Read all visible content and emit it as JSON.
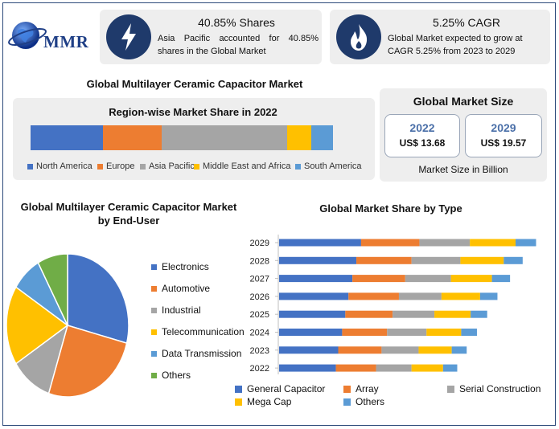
{
  "logo": {
    "text": "MMR"
  },
  "card1": {
    "title": "40.85% Shares",
    "line1": "Asia Pacific accounted for 40.85%",
    "line2": "shares in the Global Market",
    "icon": "lightning-icon"
  },
  "card2": {
    "title": "5.25% CAGR",
    "line1": "Global Market expected to grow at",
    "line2": "CAGR 5.25% from 2023 to 2029",
    "icon": "flame-icon"
  },
  "main_title": "Global Multilayer Ceramic Capacitor Market",
  "market_size": {
    "title": "Global Market Size",
    "boxes": [
      {
        "year": "2022",
        "value": "US$ 13.68"
      },
      {
        "year": "2029",
        "value": "US$ 19.57"
      }
    ],
    "caption": "Market Size in Billion"
  },
  "colors": {
    "blue": "#4472c4",
    "orange": "#ed7d31",
    "gray": "#a5a5a5",
    "yellow": "#ffc000",
    "lightblue": "#5b9bd5",
    "green": "#70ad47"
  },
  "chart_data": [
    {
      "type": "bar",
      "title": "Region-wise Market Share in 2022",
      "orientation": "horizontal-stacked",
      "series": [
        {
          "name": "North America",
          "values": [
            22
          ],
          "color": "#4472c4"
        },
        {
          "name": "Europe",
          "values": [
            18
          ],
          "color": "#ed7d31"
        },
        {
          "name": "Asia Pacific",
          "values": [
            38
          ],
          "color": "#a5a5a5"
        },
        {
          "name": "Middle East and Africa",
          "values": [
            7.5
          ],
          "color": "#ffc000"
        },
        {
          "name": "South America",
          "values": [
            6.5
          ],
          "color": "#5b9bd5"
        }
      ],
      "legend": "bottom"
    },
    {
      "type": "pie",
      "title": "Global Multilayer Ceramic Capacitor Market by End-User",
      "slices": [
        {
          "name": "Electronics",
          "value": 29,
          "color": "#4472c4"
        },
        {
          "name": "Automotive",
          "value": 26,
          "color": "#ed7d31"
        },
        {
          "name": "Industrial",
          "value": 11,
          "color": "#a5a5a5"
        },
        {
          "name": "Telecommunication",
          "value": 18,
          "color": "#ffc000"
        },
        {
          "name": "Data Transmission",
          "value": 8,
          "color": "#5b9bd5"
        },
        {
          "name": "Others",
          "value": 8,
          "color": "#70ad47"
        }
      ],
      "legend": "right"
    },
    {
      "type": "bar",
      "title": "Global Market Share by Type",
      "orientation": "horizontal-stacked",
      "categories": [
        "2029",
        "2028",
        "2027",
        "2026",
        "2025",
        "2024",
        "2023",
        "2022"
      ],
      "series": [
        {
          "name": "General Capacitor",
          "values": [
            104,
            98,
            93,
            88,
            84,
            80,
            75,
            72
          ],
          "color": "#4472c4"
        },
        {
          "name": "Array",
          "values": [
            74,
            70,
            67,
            64,
            60,
            57,
            55,
            51
          ],
          "color": "#ed7d31"
        },
        {
          "name": "Serial Construction",
          "values": [
            64,
            62,
            58,
            54,
            53,
            50,
            47,
            45
          ],
          "color": "#a5a5a5"
        },
        {
          "name": "Mega Cap",
          "values": [
            58,
            55,
            52,
            49,
            46,
            44,
            42,
            40
          ],
          "color": "#ffc000"
        },
        {
          "name": "Others",
          "values": [
            26,
            24,
            23,
            22,
            21,
            20,
            19,
            18
          ],
          "color": "#5b9bd5"
        }
      ],
      "legend": "bottom"
    }
  ]
}
